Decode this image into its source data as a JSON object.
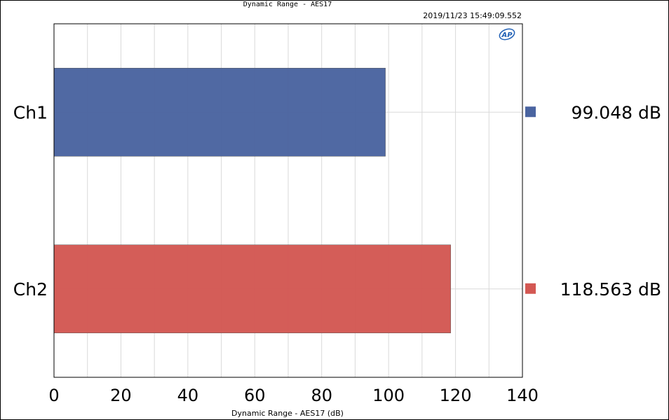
{
  "chart_data": {
    "type": "bar",
    "orientation": "horizontal",
    "title": "Dynamic Range - AES17",
    "timestamp": "2019/11/23 15:49:09.552",
    "xlabel": "Dynamic Range - AES17 (dB)",
    "ylabel": "",
    "xlim": [
      0,
      140
    ],
    "x_ticks": [
      "0",
      "20",
      "40",
      "60",
      "80",
      "100",
      "120",
      "140"
    ],
    "grid": true,
    "categories": [
      "Ch1",
      "Ch2"
    ],
    "values": [
      99.048,
      118.563
    ],
    "value_labels": [
      "99.048  dB",
      "118.563  dB"
    ],
    "colors": [
      "#4a64a0",
      "#d35853"
    ],
    "legend_position": "right",
    "logo_text": "AP"
  }
}
